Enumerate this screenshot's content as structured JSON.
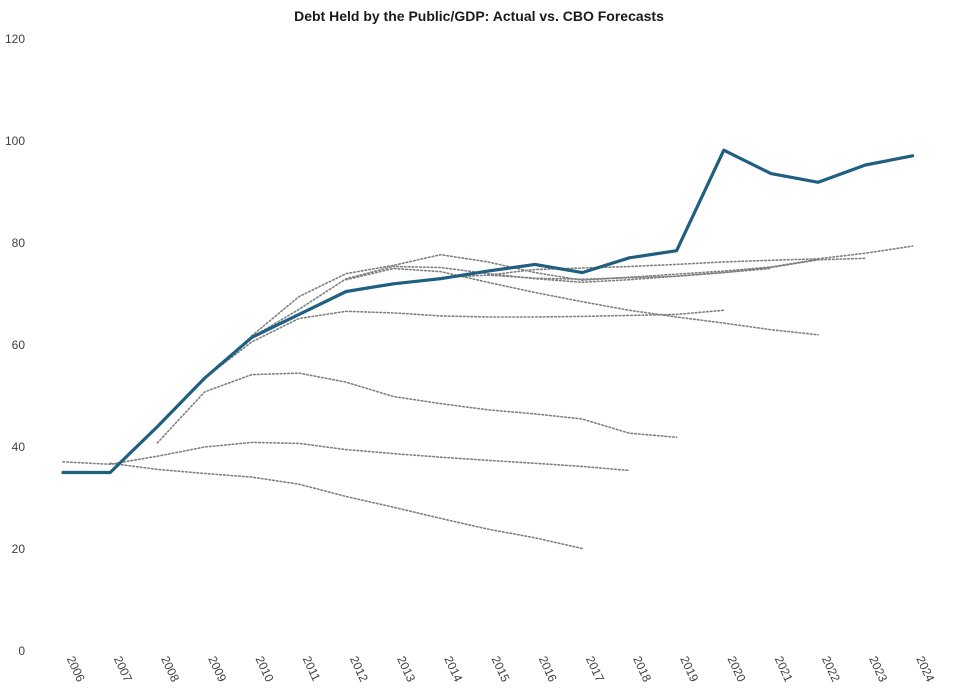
{
  "chart_data": {
    "type": "line",
    "title": "Debt Held by the Public/GDP: Actual vs. CBO Forecasts",
    "xlabel": "",
    "ylabel": "",
    "ylim": [
      0,
      120
    ],
    "yticks": [
      "0",
      "20",
      "40",
      "60",
      "80",
      "100",
      "120"
    ],
    "x": [
      "2006",
      "2007",
      "2008",
      "2009",
      "2010",
      "2011",
      "2012",
      "2013",
      "2014",
      "2015",
      "2016",
      "2017",
      "2018",
      "2019",
      "2020",
      "2021",
      "2022",
      "2023",
      "2024"
    ],
    "grid": false,
    "legend": "none",
    "colors": {
      "actual": "#1f5f7f",
      "forecast": "#808080"
    },
    "series": [
      {
        "kind": "actual",
        "x": [
          "2006",
          "2007",
          "2008",
          "2009",
          "2010",
          "2011",
          "2012",
          "2013",
          "2014",
          "2015",
          "2016",
          "2017",
          "2018",
          "2019",
          "2020",
          "2021",
          "2022",
          "2023",
          "2024"
        ],
        "values": [
          35.0,
          35.0,
          44.0,
          53.5,
          61.5,
          66.0,
          70.5,
          72.0,
          73.0,
          74.5,
          75.8,
          74.2,
          77.1,
          78.5,
          98.2,
          93.6,
          91.9,
          95.3,
          97.1
        ]
      },
      {
        "kind": "forecast",
        "x": [
          "2007",
          "2008",
          "2009",
          "2010",
          "2011",
          "2012",
          "2013",
          "2014",
          "2015",
          "2016",
          "2017"
        ],
        "values": [
          36.8,
          35.6,
          34.8,
          34.1,
          32.7,
          30.3,
          28.2,
          26.0,
          23.9,
          22.2,
          20.1
        ]
      },
      {
        "kind": "forecast",
        "x": [
          "2006",
          "2007",
          "2008",
          "2009",
          "2010",
          "2011",
          "2012",
          "2013",
          "2014",
          "2015",
          "2016",
          "2017",
          "2018"
        ],
        "values": [
          37.1,
          36.6,
          38.2,
          40.0,
          40.9,
          40.7,
          39.5,
          38.7,
          38.0,
          37.4,
          36.8,
          36.2,
          35.4
        ]
      },
      {
        "kind": "forecast",
        "x": [
          "2008",
          "2009",
          "2010",
          "2011",
          "2012",
          "2013",
          "2014",
          "2015",
          "2016",
          "2017",
          "2018",
          "2019"
        ],
        "values": [
          40.8,
          50.8,
          54.2,
          54.5,
          52.7,
          49.9,
          48.5,
          47.3,
          46.5,
          45.5,
          42.7,
          41.9
        ]
      },
      {
        "kind": "forecast",
        "x": [
          "2009",
          "2010",
          "2011",
          "2012",
          "2013",
          "2014",
          "2015",
          "2016",
          "2017",
          "2018",
          "2019",
          "2020"
        ],
        "values": [
          53.5,
          60.6,
          65.2,
          66.6,
          66.3,
          65.7,
          65.5,
          65.5,
          65.6,
          65.8,
          66.0,
          66.8
        ]
      },
      {
        "kind": "forecast",
        "x": [
          "2010",
          "2011",
          "2012",
          "2013",
          "2014",
          "2015",
          "2016",
          "2017",
          "2018",
          "2019",
          "2020",
          "2021"
        ],
        "values": [
          61.5,
          67.0,
          73.0,
          75.4,
          75.2,
          74.0,
          73.0,
          72.3,
          72.8,
          73.5,
          74.2,
          75.0
        ]
      },
      {
        "kind": "forecast",
        "x": [
          "2010",
          "2011",
          "2012",
          "2013",
          "2014",
          "2015",
          "2016",
          "2017",
          "2018",
          "2019",
          "2020",
          "2021",
          "2022"
        ],
        "values": [
          61.8,
          69.5,
          74.0,
          75.6,
          77.7,
          76.3,
          74.2,
          72.7,
          73.3,
          73.9,
          74.5,
          75.3,
          76.8
        ]
      },
      {
        "kind": "forecast",
        "x": [
          "2012",
          "2013",
          "2014",
          "2015",
          "2016",
          "2017",
          "2018",
          "2019",
          "2020",
          "2021",
          "2022"
        ],
        "values": [
          72.8,
          75.0,
          74.4,
          72.3,
          70.3,
          68.5,
          66.8,
          65.5,
          64.3,
          63.0,
          62.0
        ]
      },
      {
        "kind": "forecast",
        "x": [
          "2013",
          "2014",
          "2015",
          "2016",
          "2017",
          "2018",
          "2019",
          "2020",
          "2021",
          "2022",
          "2023"
        ],
        "values": [
          72.0,
          73.2,
          73.7,
          73.1,
          72.9,
          73.2,
          73.5,
          74.2,
          75.2,
          76.7,
          77.0
        ]
      },
      {
        "kind": "forecast",
        "x": [
          "2015",
          "2016",
          "2017",
          "2018",
          "2019",
          "2020",
          "2021",
          "2022",
          "2023",
          "2024"
        ],
        "values": [
          73.7,
          74.8,
          75.1,
          75.4,
          75.8,
          76.3,
          76.6,
          76.9,
          78.0,
          79.4
        ]
      }
    ]
  }
}
